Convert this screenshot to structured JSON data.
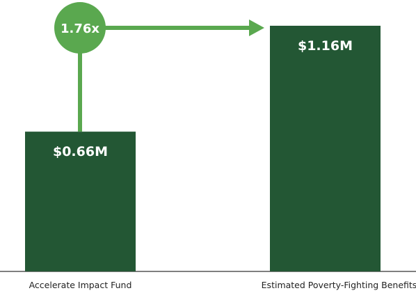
{
  "chart_data": {
    "type": "bar",
    "categories": [
      "Accelerate Impact Fund",
      "Estimated Poverty-Fighting Benefits"
    ],
    "values": [
      0.66,
      1.16
    ],
    "value_labels": [
      "$0.66M",
      "$1.16M"
    ],
    "multiplier_label": "1.76x",
    "title": "",
    "xlabel": "",
    "ylabel": "",
    "ylim": [
      0,
      1.16
    ],
    "grid": false,
    "legend": "none"
  },
  "colors": {
    "bar": "#235734",
    "accent": "#5aa84f",
    "bar_text": "#ffffff",
    "axis": "#555555"
  }
}
